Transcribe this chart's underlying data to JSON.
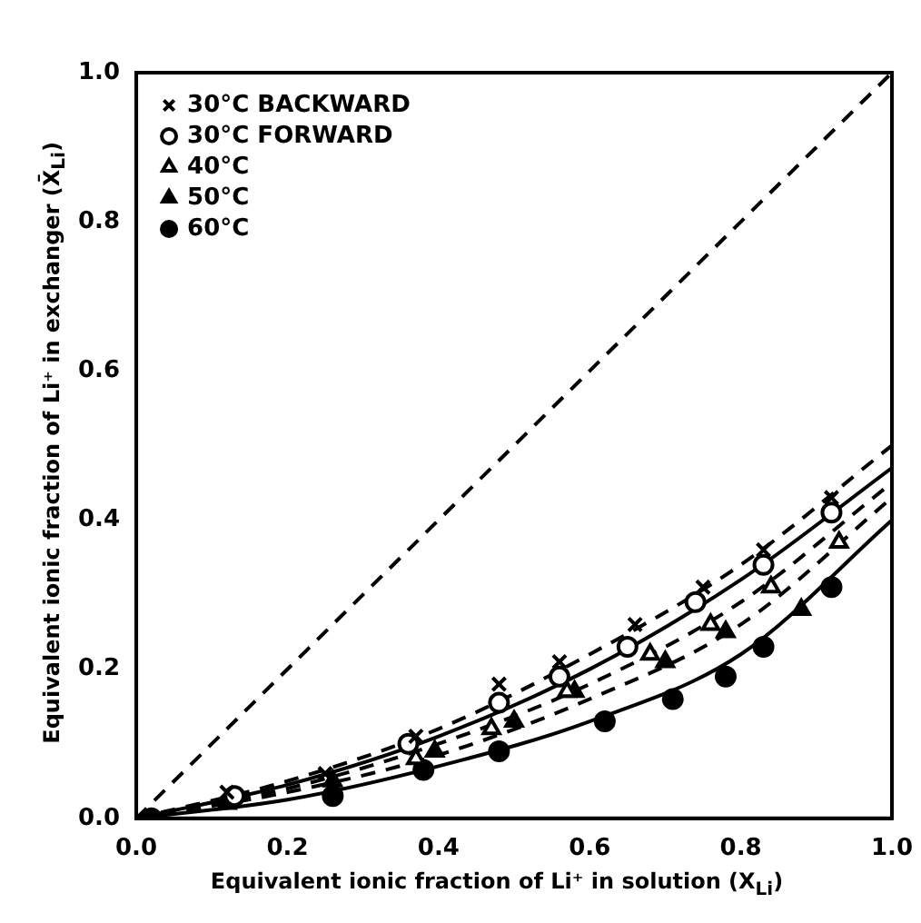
{
  "chart_data": {
    "type": "scatter",
    "xlabel": "Equivalent ionic fraction of Li⁺ in solution  (X$_{Li}$)",
    "ylabel": "Equivalent ionic fraction of Li⁺ in exchanger  (X̄$_{Li}$)",
    "xlim": [
      0,
      1
    ],
    "ylim": [
      0,
      1
    ],
    "xticks": [
      {
        "value": 0,
        "label": "0.0"
      },
      {
        "value": 0.2,
        "label": "0.2"
      },
      {
        "value": 0.4,
        "label": "0.4"
      },
      {
        "value": 0.6,
        "label": "0.6"
      },
      {
        "value": 0.8,
        "label": "0.8"
      },
      {
        "value": 1,
        "label": "1.0"
      }
    ],
    "yticks": [
      {
        "value": 0,
        "label": "0.0"
      },
      {
        "value": 0.2,
        "label": "0.2"
      },
      {
        "value": 0.4,
        "label": "0.4"
      },
      {
        "value": 0.6,
        "label": "0.6"
      },
      {
        "value": 0.8,
        "label": "0.8"
      },
      {
        "value": 1,
        "label": "1.0"
      }
    ],
    "grid": false,
    "legend": "top left",
    "series": [
      {
        "name": "30°C BACKWARD",
        "color": "#000000",
        "marker": "cross",
        "x": [
          0.12,
          0.25,
          0.37,
          0.48,
          0.56,
          0.66,
          0.75,
          0.83,
          0.92
        ],
        "values": [
          0.035,
          0.06,
          0.11,
          0.18,
          0.21,
          0.26,
          0.31,
          0.36,
          0.43
        ]
      },
      {
        "name": "30°C FORWARD",
        "color": "#000000",
        "marker": "circle",
        "x": [
          0.13,
          0.36,
          0.48,
          0.56,
          0.65,
          0.74,
          0.83,
          0.92
        ],
        "values": [
          0.03,
          0.1,
          0.155,
          0.19,
          0.23,
          0.29,
          0.34,
          0.41
        ]
      },
      {
        "name": "40°C",
        "color": "#000000",
        "marker": "triangle",
        "x": [
          0.37,
          0.47,
          0.57,
          0.68,
          0.76,
          0.84,
          0.93
        ],
        "values": [
          0.08,
          0.12,
          0.17,
          0.22,
          0.26,
          0.31,
          0.37
        ]
      },
      {
        "name": "50°C",
        "color": "#000000",
        "marker": "triangle",
        "x": [
          0.12,
          0.26,
          0.395,
          0.5,
          0.58,
          0.7,
          0.78,
          0.88
        ],
        "values": [
          0.02,
          0.05,
          0.09,
          0.13,
          0.17,
          0.21,
          0.25,
          0.28
        ]
      },
      {
        "name": "60°C",
        "color": "#000000",
        "marker": "circle",
        "x": [
          0.02,
          0.26,
          0.38,
          0.48,
          0.62,
          0.71,
          0.78,
          0.83,
          0.92
        ],
        "values": [
          0,
          0.03,
          0.065,
          0.09,
          0.13,
          0.16,
          0.19,
          0.23,
          0.31
        ]
      },
      {
        "type": "line",
        "color": "#000000",
        "line_style": "dashed",
        "x": [
          0,
          1
        ],
        "values": [
          0,
          1
        ]
      },
      {
        "type": "line",
        "color": "#000000",
        "line_style": "dashed",
        "x": [
          0,
          0.2,
          0.4,
          0.6,
          0.8,
          1
        ],
        "values": [
          0,
          0.05,
          0.12,
          0.22,
          0.34,
          0.5
        ]
      },
      {
        "type": "line",
        "color": "#000000",
        "line_style": "solid",
        "x": [
          0,
          0.2,
          0.4,
          0.6,
          0.8,
          1
        ],
        "values": [
          0,
          0.045,
          0.11,
          0.2,
          0.32,
          0.47
        ]
      },
      {
        "type": "line",
        "color": "#000000",
        "line_style": "dashed",
        "x": [
          0,
          0.2,
          0.4,
          0.6,
          0.8,
          1
        ],
        "values": [
          0,
          0.04,
          0.1,
          0.18,
          0.29,
          0.45
        ]
      },
      {
        "type": "line",
        "color": "#000000",
        "line_style": "dashed",
        "x": [
          0,
          0.2,
          0.4,
          0.6,
          0.8,
          1
        ],
        "values": [
          0,
          0.035,
          0.085,
          0.16,
          0.26,
          0.43
        ]
      },
      {
        "type": "line",
        "color": "#000000",
        "line_style": "solid",
        "x": [
          0,
          0.2,
          0.4,
          0.6,
          0.8,
          1
        ],
        "values": [
          0,
          0.025,
          0.07,
          0.13,
          0.22,
          0.4
        ]
      }
    ]
  }
}
